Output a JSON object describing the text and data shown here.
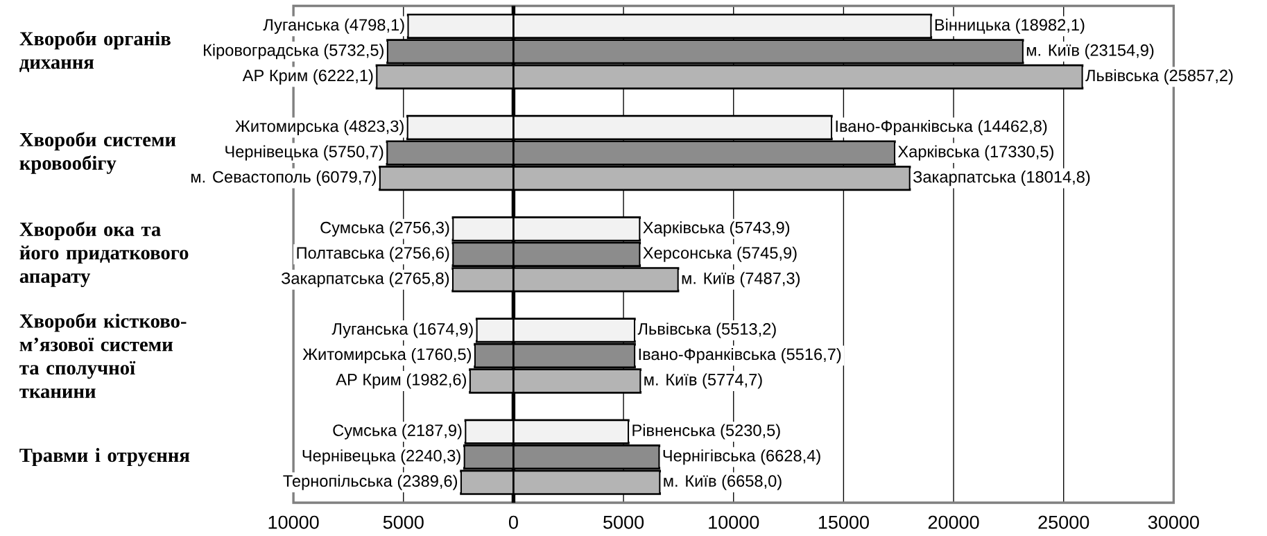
{
  "chart_data": {
    "type": "bar",
    "orientation": "horizontal",
    "stacked": true,
    "categories": [
      null,
      null,
      null,
      null,
      null,
      null,
      null,
      null,
      null,
      null,
      null,
      null,
      null,
      null,
      null,
      null,
      null,
      null,
      null
    ],
    "series": [
      {
        "colors": [
          "#f2f2f2",
          "#8c8c8c",
          "#b4b4b4",
          null,
          "#f2f2f2",
          "#8c8c8c",
          "#b4b4b4",
          null,
          "#f2f2f2",
          "#8c8c8c",
          "#b4b4b4",
          null,
          "#f2f2f2",
          "#8c8c8c",
          "#b4b4b4",
          null,
          "#f2f2f2",
          "#8c8c8c",
          "#b4b4b4"
        ],
        "values": [
          -4798.1,
          -5732.5,
          -6222.1,
          null,
          -4823.3,
          -5750.7,
          -6079.7,
          null,
          -2756.3,
          -2756.6,
          -2765.8,
          null,
          -1674.9,
          -1760.5,
          -1982.6,
          null,
          -2187.9,
          -2240.3,
          -2389.6
        ],
        "value_labels": [
          "Луганська (4798,1)",
          "Кіровоградська (5732,5)",
          "АР Крим (6222,1)",
          null,
          "Житомирська (4823,3)",
          "Чернівецька (5750,7)",
          "м. Севастополь (6079,7)",
          null,
          "Сумська (2756,3)",
          "Полтавська (2756,6)",
          "Закарпатська (2765,8)",
          null,
          "Луганська (1674,9)",
          "Житомирська (1760,5)",
          "АР Крим (1982,6)",
          null,
          "Сумська (2187,9)",
          "Чернівецька (2240,3)",
          "Тернопільська (2389,6)"
        ]
      },
      {
        "colors": [
          "#f2f2f2",
          "#8c8c8c",
          "#b4b4b4",
          null,
          "#f2f2f2",
          "#8c8c8c",
          "#b4b4b4",
          null,
          "#f2f2f2",
          "#8c8c8c",
          "#b4b4b4",
          null,
          "#f2f2f2",
          "#8c8c8c",
          "#b4b4b4",
          null,
          "#f2f2f2",
          "#8c8c8c",
          "#b4b4b4"
        ],
        "values": [
          18982.1,
          23154.9,
          25857.2,
          null,
          14462.8,
          17330.5,
          18014.8,
          null,
          5743.9,
          5745.9,
          7487.3,
          null,
          5513.2,
          5516.7,
          5774.7,
          null,
          5230.5,
          6628.4,
          6658.0
        ],
        "value_labels": [
          "Вінницька (18982,1)",
          "м. Київ (23154,9)",
          "Львівська (25857,2)",
          null,
          "Івано-Франківська (14462,8)",
          "Харківська (17330,5)",
          "Закарпатська (18014,8)",
          null,
          "Харківська (5743,9)",
          "Херсонська (5745,9)",
          "м. Київ (7487,3)",
          null,
          "Львівська (5513,2)",
          "Івано-Франківська (5516,7)",
          "м. Київ (5774,7)",
          null,
          "Рівненська (5230,5)",
          "Чернігівська (6628,4)",
          "м. Київ (6658,0)"
        ]
      }
    ],
    "annotations": [
      "Хвороби органів дихання",
      "Хвороби системи кровообігу",
      "Хвороби ока та його придаткового апарату",
      "Хвороби кістково-м’язової системи та сполучної тканини",
      "Травми і отруєння"
    ],
    "xlim": [
      -10000,
      30000
    ],
    "xticks": [
      {
        "value": -10000,
        "label": "10000"
      },
      {
        "value": -5000,
        "label": "5000"
      },
      0,
      5000,
      10000,
      15000,
      20000,
      25000,
      30000
    ],
    "grid": "x",
    "ref_lines": [
      {
        "axis": "x",
        "value": 0
      }
    ]
  }
}
